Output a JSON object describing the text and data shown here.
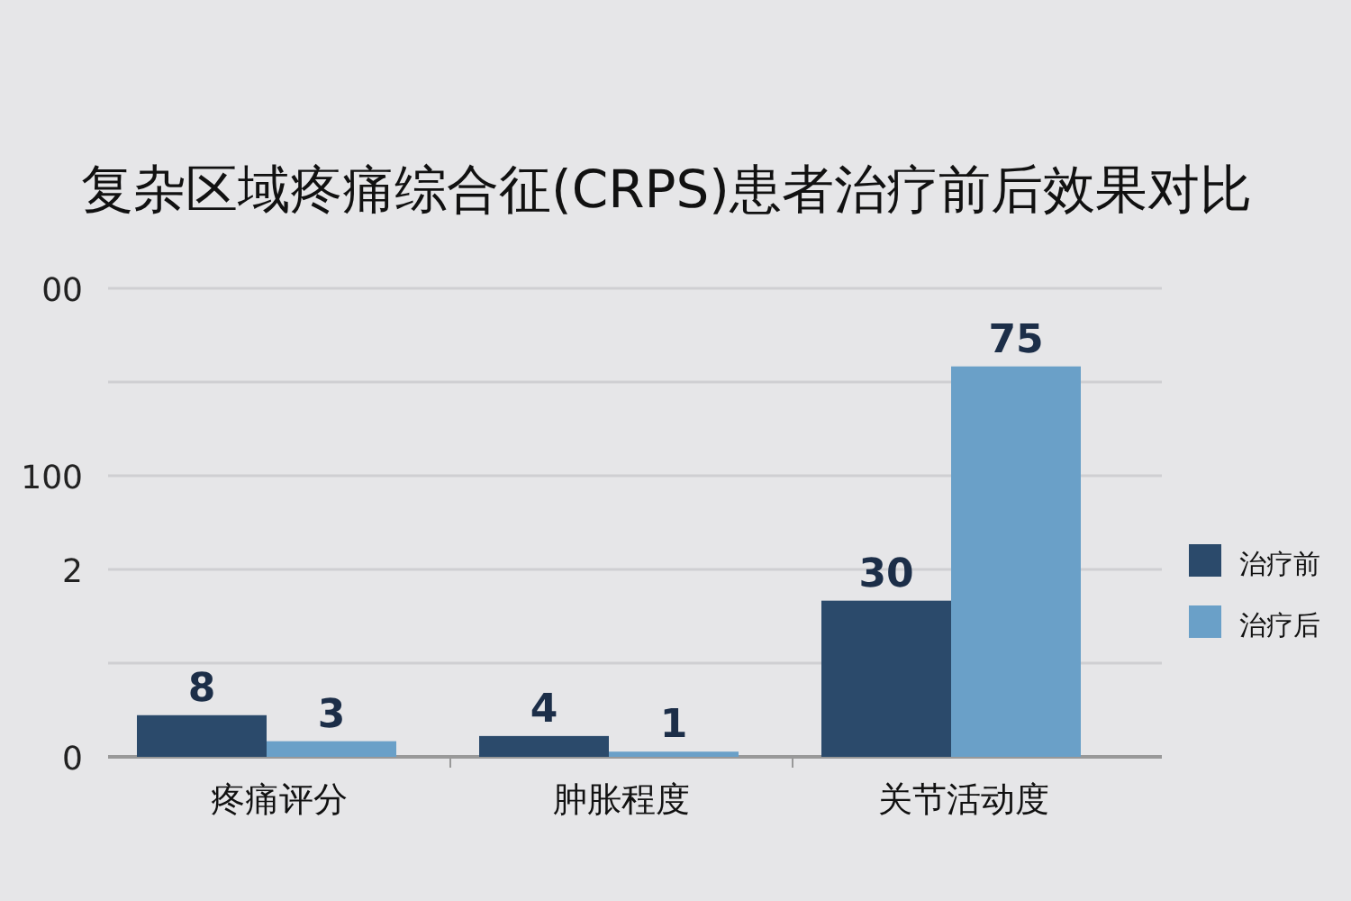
{
  "chart_data": {
    "type": "bar",
    "title": "复杂区域疼痛综合征(CRPS)患者治疗前后效果对比",
    "categories": [
      "疼痛评分",
      "肿胀程度",
      "关节活动度"
    ],
    "series": [
      {
        "name": "治疗前",
        "color": "#2b4a6b",
        "values": [
          8,
          4,
          30
        ]
      },
      {
        "name": "治疗后",
        "color": "#6aa0c8",
        "values": [
          3,
          1,
          75
        ]
      }
    ],
    "data_labels": true,
    "ylim": [
      0,
      90
    ],
    "yticks": [
      {
        "value": 0,
        "label": null
      },
      {
        "value": 18,
        "label": null
      },
      {
        "value": 36,
        "label": null
      },
      {
        "value": 54,
        "label": null
      },
      {
        "value": 72,
        "label": null
      },
      {
        "value": 90,
        "label": null
      }
    ],
    "annotations": [
      "00",
      "100",
      "2",
      "0"
    ],
    "tick_labels": "x",
    "grid": "y",
    "legend": "right"
  }
}
